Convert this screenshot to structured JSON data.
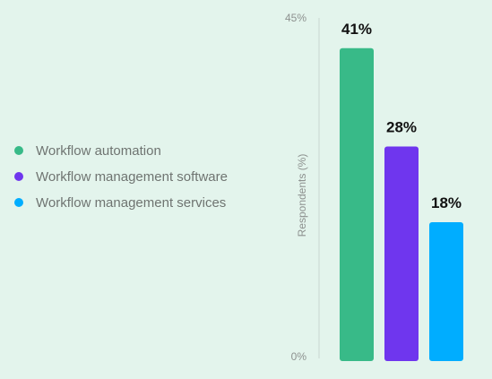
{
  "chart_data": {
    "type": "bar",
    "categories": [
      "Workflow automation",
      "Workflow management software",
      "Workflow management services"
    ],
    "values": [
      41,
      28,
      18
    ],
    "value_labels": [
      "41%",
      "28%",
      "18%"
    ],
    "colors": [
      "#38ba88",
      "#6f36ee",
      "#00adff"
    ],
    "ylabel": "Respondents (%)",
    "ylim": [
      0,
      45
    ],
    "ytick_labels": [
      "0%",
      "45%"
    ],
    "legend_position": "left",
    "grid": false
  }
}
